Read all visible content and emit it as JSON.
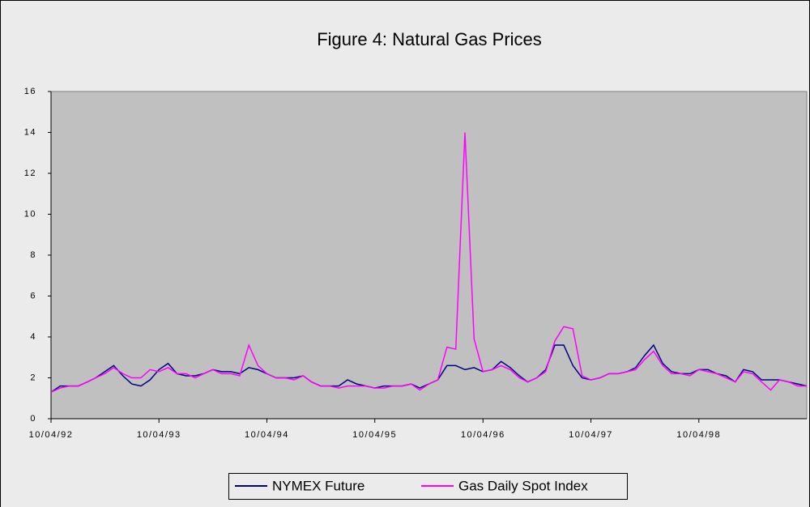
{
  "chart_data": {
    "type": "line",
    "title": "Figure 4: Natural Gas Prices",
    "x": [
      "10/04/92",
      "11/04/92",
      "12/04/92",
      "01/04/93",
      "02/04/93",
      "03/04/93",
      "04/04/93",
      "05/04/93",
      "06/04/93",
      "07/04/93",
      "08/04/93",
      "09/04/93",
      "10/04/93",
      "11/04/93",
      "12/04/93",
      "01/04/94",
      "02/04/94",
      "03/04/94",
      "04/04/94",
      "05/04/94",
      "06/04/94",
      "07/04/94",
      "08/04/94",
      "09/04/94",
      "10/04/94",
      "11/04/94",
      "12/04/94",
      "01/04/95",
      "02/04/95",
      "03/04/95",
      "04/04/95",
      "05/04/95",
      "06/04/95",
      "07/04/95",
      "08/04/95",
      "09/04/95",
      "10/04/95",
      "11/04/95",
      "12/04/95",
      "01/04/96",
      "02/04/96",
      "03/04/96",
      "04/04/96",
      "05/04/96",
      "06/04/96",
      "07/04/96",
      "08/04/96",
      "09/04/96",
      "10/04/96",
      "11/04/96",
      "12/04/96",
      "01/04/97",
      "02/04/97",
      "03/04/97",
      "04/04/97",
      "05/04/97",
      "06/04/97",
      "07/04/97",
      "08/04/97",
      "09/04/97",
      "10/04/97",
      "11/04/97",
      "12/04/97",
      "01/04/98",
      "02/04/98",
      "03/04/98",
      "04/04/98",
      "05/04/98",
      "06/04/98",
      "07/04/98",
      "08/04/98",
      "09/04/98",
      "10/04/98",
      "11/04/98",
      "12/04/98",
      "01/04/99",
      "02/04/99",
      "03/04/99",
      "04/04/99",
      "05/04/99",
      "06/04/99",
      "07/04/99",
      "08/04/99",
      "09/04/99",
      "10/04/99"
    ],
    "series": [
      {
        "name": "NYMEX Future",
        "color": "#000080",
        "values": [
          1.3,
          1.6,
          1.6,
          1.6,
          1.8,
          2.0,
          2.3,
          2.6,
          2.1,
          1.7,
          1.6,
          1.9,
          2.4,
          2.7,
          2.2,
          2.1,
          2.1,
          2.2,
          2.4,
          2.3,
          2.3,
          2.2,
          2.5,
          2.4,
          2.2,
          2.0,
          2.0,
          2.0,
          2.1,
          1.8,
          1.6,
          1.6,
          1.6,
          1.9,
          1.7,
          1.6,
          1.5,
          1.6,
          1.6,
          1.6,
          1.7,
          1.5,
          1.7,
          1.9,
          2.6,
          2.6,
          2.4,
          2.5,
          2.3,
          2.4,
          2.8,
          2.5,
          2.1,
          1.8,
          2.0,
          2.4,
          3.6,
          3.6,
          2.6,
          2.0,
          1.9,
          2.0,
          2.2,
          2.2,
          2.3,
          2.5,
          3.1,
          3.6,
          2.7,
          2.3,
          2.2,
          2.2,
          2.4,
          2.4,
          2.2,
          2.1,
          1.8,
          2.4,
          2.3,
          1.9,
          1.9,
          1.9,
          1.8,
          1.7,
          1.6
        ]
      },
      {
        "name": "Gas Daily Spot Index",
        "color": "#ff00ff",
        "values": [
          1.3,
          1.5,
          1.6,
          1.6,
          1.8,
          2.0,
          2.2,
          2.5,
          2.2,
          2.0,
          2.0,
          2.4,
          2.3,
          2.5,
          2.2,
          2.2,
          2.0,
          2.2,
          2.4,
          2.2,
          2.2,
          2.1,
          3.6,
          2.6,
          2.2,
          2.0,
          2.0,
          1.9,
          2.1,
          1.8,
          1.6,
          1.6,
          1.5,
          1.6,
          1.6,
          1.6,
          1.5,
          1.5,
          1.6,
          1.6,
          1.7,
          1.4,
          1.7,
          1.9,
          3.5,
          3.4,
          14.0,
          3.9,
          2.3,
          2.4,
          2.6,
          2.4,
          2.0,
          1.8,
          2.0,
          2.3,
          3.8,
          4.5,
          4.4,
          2.1,
          1.9,
          2.0,
          2.2,
          2.2,
          2.3,
          2.4,
          2.9,
          3.3,
          2.6,
          2.2,
          2.2,
          2.1,
          2.4,
          2.3,
          2.2,
          2.0,
          1.8,
          2.3,
          2.2,
          1.8,
          1.4,
          1.9,
          1.8,
          1.6,
          1.6
        ]
      }
    ],
    "xlim": [
      "10/04/92",
      "10/04/99"
    ],
    "xticks": [
      "10/04/92",
      "10/04/93",
      "10/04/94",
      "10/04/95",
      "10/04/96",
      "10/04/97",
      "10/04/98"
    ],
    "ylim": [
      0,
      16
    ],
    "yticks": [
      0,
      2,
      4,
      6,
      8,
      10,
      12,
      14,
      16
    ],
    "grid": false,
    "legend": "bottom"
  }
}
